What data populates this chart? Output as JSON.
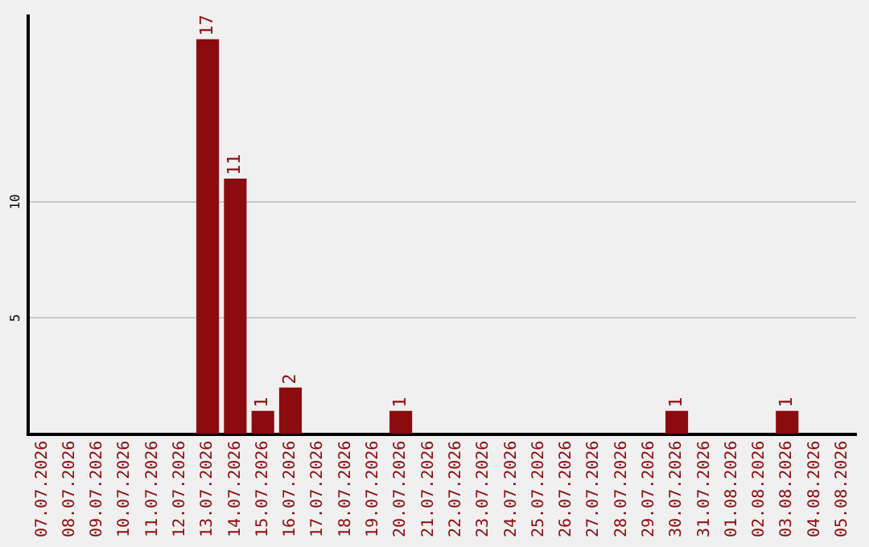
{
  "chart_data": {
    "type": "bar",
    "categories": [
      "07.07.2026",
      "08.07.2026",
      "09.07.2026",
      "10.07.2026",
      "11.07.2026",
      "12.07.2026",
      "13.07.2026",
      "14.07.2026",
      "15.07.2026",
      "16.07.2026",
      "17.07.2026",
      "18.07.2026",
      "19.07.2026",
      "20.07.2026",
      "21.07.2026",
      "22.07.2026",
      "23.07.2026",
      "24.07.2026",
      "25.07.2026",
      "26.07.2026",
      "27.07.2026",
      "28.07.2026",
      "29.07.2026",
      "30.07.2026",
      "31.07.2026",
      "01.08.2026",
      "02.08.2026",
      "03.08.2026",
      "04.08.2026",
      "05.08.2026"
    ],
    "values": [
      0,
      0,
      0,
      0,
      0,
      0,
      17,
      11,
      1,
      2,
      0,
      0,
      0,
      1,
      0,
      0,
      0,
      0,
      0,
      0,
      0,
      0,
      0,
      1,
      0,
      0,
      0,
      1,
      0,
      0
    ],
    "value_labels": [
      null,
      null,
      null,
      null,
      null,
      null,
      "17",
      "11",
      "1",
      "2",
      null,
      null,
      null,
      "1",
      null,
      null,
      null,
      null,
      null,
      null,
      null,
      null,
      null,
      "1",
      null,
      null,
      null,
      "1",
      null,
      null
    ],
    "color": "#8b0b0e",
    "ylim": [
      0,
      18
    ],
    "yticks": [
      5,
      10
    ],
    "grid": "y",
    "legend": false
  }
}
